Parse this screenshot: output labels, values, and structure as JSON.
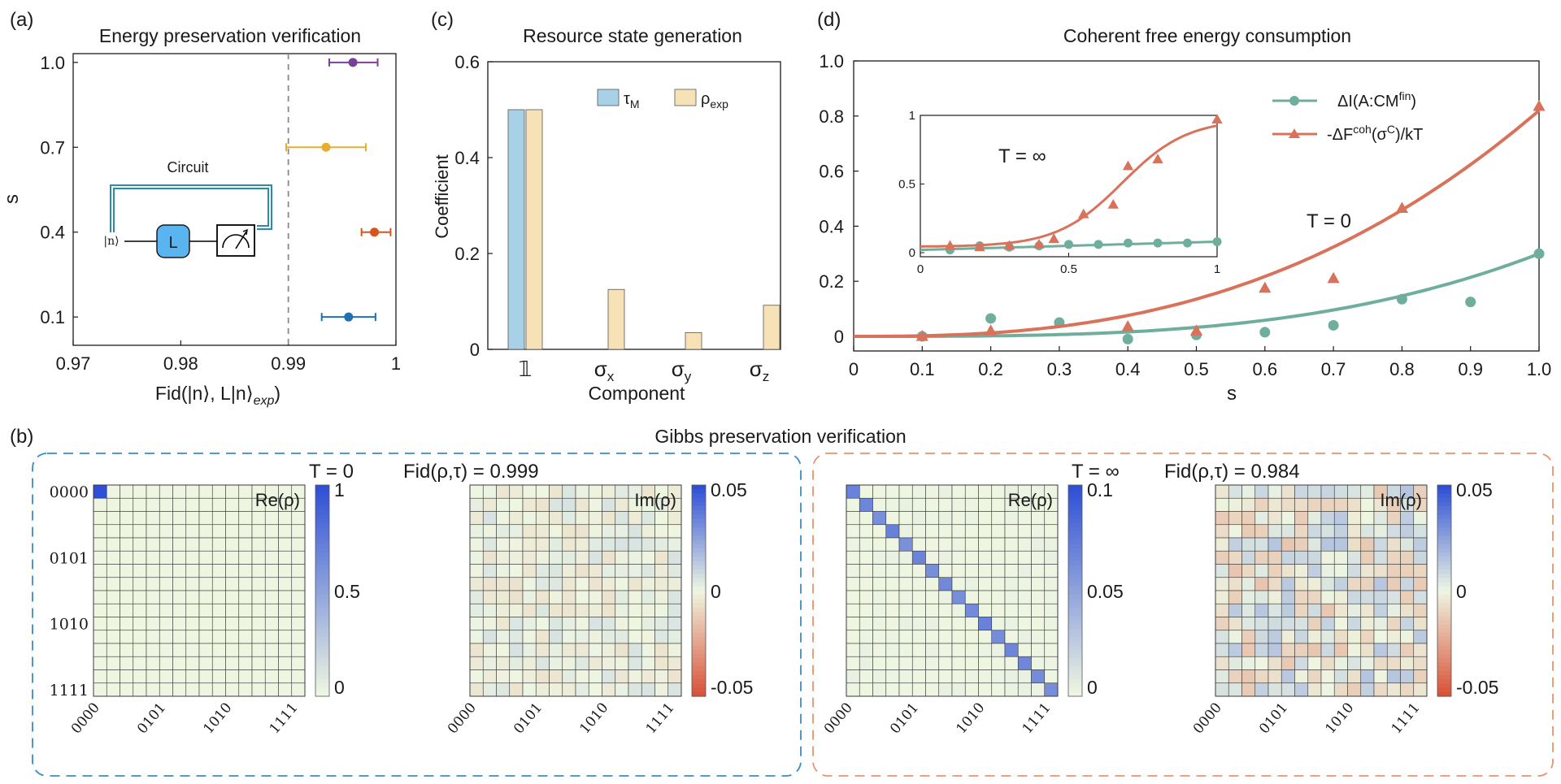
{
  "panel_labels": {
    "a": "(a)",
    "b": "(b)",
    "c": "(c)",
    "d": "(d)"
  },
  "colors": {
    "teal": "#6fae9c",
    "salmon": "#d9725a",
    "blue_bar": "#a8d0e6",
    "tan_bar": "#f7e2b8",
    "purple": "#7b3f98",
    "yellow": "#e8ad2d",
    "orange": "#d9531e",
    "dark_blue": "#1f6fb4",
    "dashed_blue": "#3b8cc0",
    "dashed_orange": "#e8936d",
    "hm_pos": "#2f4fd6",
    "hm_zero": "#eef6e2",
    "hm_neg": "#d9533a"
  },
  "chart_data": [
    {
      "id": "a",
      "type": "scatter",
      "title": "Energy preservation verification",
      "xlabel": "Fid(|n⟩, L|n⟩",
      "xlabel_sub": "exp",
      "xlabel_close": ")",
      "ylabel": "s",
      "xlim": [
        0.97,
        1.0
      ],
      "xticks": [
        0.97,
        0.98,
        0.99,
        1.0
      ],
      "xtick_labels": [
        "0.97",
        "0.98",
        "0.99",
        "1"
      ],
      "yticks": [
        0.1,
        0.4,
        0.7,
        1.0
      ],
      "ytick_labels": [
        "0.1",
        "0.4",
        "0.7",
        "1.0"
      ],
      "ref_line_x": 0.99,
      "points": [
        {
          "s": 1.0,
          "fid": 0.996,
          "err_low": 0.9938,
          "err_high": 0.9983,
          "color": "#7b3f98"
        },
        {
          "s": 0.7,
          "fid": 0.9935,
          "err_low": 0.9898,
          "err_high": 0.9972,
          "color": "#e8ad2d"
        },
        {
          "s": 0.4,
          "fid": 0.998,
          "err_low": 0.9968,
          "err_high": 0.9995,
          "color": "#d9531e"
        },
        {
          "s": 0.1,
          "fid": 0.9956,
          "err_low": 0.9931,
          "err_high": 0.9981,
          "color": "#1f6fb4"
        }
      ],
      "inset": {
        "label": "Circuit",
        "input": "|n⟩",
        "gate": "L",
        "meter_icon": "measurement-meter-icon"
      }
    },
    {
      "id": "c",
      "type": "bar",
      "title": "Resource state generation",
      "xlabel": "Component",
      "ylabel": "Coefficient",
      "ylim": [
        0,
        0.6
      ],
      "yticks": [
        0,
        0.2,
        0.4,
        0.6
      ],
      "ytick_labels": [
        "0",
        "0.2",
        "0.4",
        "0.6"
      ],
      "categories": [
        "𝟙",
        "σ",
        "σ",
        "σ"
      ],
      "category_subs": [
        "",
        "x",
        "y",
        "z"
      ],
      "series": [
        {
          "name": "τ",
          "name_sub": "M",
          "color": "#a8d0e6",
          "values": [
            0.5,
            0,
            0,
            0
          ]
        },
        {
          "name": "ρ",
          "name_sub": "exp",
          "color": "#f7e2b8",
          "values": [
            0.5,
            0.125,
            0.035,
            0.092
          ]
        }
      ]
    },
    {
      "id": "d",
      "type": "line",
      "title": "Coherent free energy consumption",
      "xlabel": "s",
      "ylabel": "",
      "xlim": [
        0,
        1.0
      ],
      "ylim": [
        -0.05,
        1.0
      ],
      "xticks": [
        0,
        0.1,
        0.2,
        0.3,
        0.4,
        0.5,
        0.6,
        0.7,
        0.8,
        0.9,
        1.0
      ],
      "xtick_labels": [
        "0",
        "0.1",
        "0.2",
        "0.3",
        "0.4",
        "0.5",
        "0.6",
        "0.7",
        "0.8",
        "0.9",
        "1.0"
      ],
      "yticks": [
        0,
        0.2,
        0.4,
        0.6,
        0.8,
        1.0
      ],
      "ytick_labels": [
        "0",
        "0.2",
        "0.4",
        "0.6",
        "0.8",
        "1.0"
      ],
      "annotation": "T = 0",
      "series": [
        {
          "name": "ΔI(A:CM",
          "name_sup": "fin",
          "name_tail": ")",
          "color": "#6fae9c",
          "marker": "circle",
          "points": [
            [
              0.1,
              0.0
            ],
            [
              0.2,
              0.065
            ],
            [
              0.3,
              0.05
            ],
            [
              0.4,
              -0.01
            ],
            [
              0.5,
              0.005
            ],
            [
              0.6,
              0.015
            ],
            [
              0.7,
              0.04
            ],
            [
              0.8,
              0.135
            ],
            [
              0.9,
              0.125
            ],
            [
              1.0,
              0.3
            ]
          ],
          "fit": {
            "form": "a*s^p",
            "a": 0.3,
            "p": 3.2
          }
        },
        {
          "name": "-ΔF",
          "name_sup": "coh",
          "name_mid": "(σ",
          "name_sup2": "C",
          "name_tail": ")/kT",
          "color": "#d9725a",
          "marker": "triangle",
          "points": [
            [
              0.1,
              0.0
            ],
            [
              0.2,
              0.02
            ],
            [
              0.4,
              0.035
            ],
            [
              0.5,
              0.02
            ],
            [
              0.6,
              0.175
            ],
            [
              0.7,
              0.21
            ],
            [
              0.8,
              0.465
            ],
            [
              1.0,
              0.835
            ]
          ],
          "fit": {
            "form": "a*s^p",
            "a": 0.82,
            "p": 2.6
          }
        }
      ],
      "inset": {
        "annotation": "T = ∞",
        "xlim": [
          0,
          1
        ],
        "ylim": [
          0,
          1
        ],
        "xticks": [
          0,
          0.5,
          1
        ],
        "xtick_labels": [
          "0",
          "0.5",
          "1"
        ],
        "yticks": [
          0,
          0.5,
          1
        ],
        "ytick_labels": [
          "0",
          "0.5",
          "1"
        ],
        "series": [
          {
            "color": "#6fae9c",
            "marker": "circle",
            "points": [
              [
                0.1,
                0.02
              ],
              [
                0.2,
                0.05
              ],
              [
                0.3,
                0.04
              ],
              [
                0.4,
                0.05
              ],
              [
                0.5,
                0.06
              ],
              [
                0.6,
                0.06
              ],
              [
                0.7,
                0.07
              ],
              [
                0.8,
                0.07
              ],
              [
                0.9,
                0.07
              ],
              [
                1.0,
                0.08
              ]
            ],
            "fit": {
              "form": "linear",
              "a": 0.02,
              "b": 0.06
            }
          },
          {
            "color": "#d9725a",
            "marker": "triangle",
            "points": [
              [
                0.1,
                0.05
              ],
              [
                0.2,
                0.04
              ],
              [
                0.3,
                0.05
              ],
              [
                0.4,
                0.06
              ],
              [
                0.45,
                0.1
              ],
              [
                0.55,
                0.28
              ],
              [
                0.65,
                0.35
              ],
              [
                0.7,
                0.63
              ],
              [
                0.8,
                0.68
              ],
              [
                1.0,
                0.97
              ]
            ],
            "fit": {
              "form": "sigmoid"
            }
          }
        ]
      }
    },
    {
      "id": "b",
      "type": "heatmap",
      "title": "Gibbs preservation verification",
      "groups": [
        {
          "condition": "T = 0",
          "fidelity": "Fid(ρ,τ) = 0.999"
        },
        {
          "condition": "T = ∞",
          "fidelity": "Fid(ρ,τ) = 0.984"
        }
      ],
      "size": 16,
      "axis_labels": [
        "0000",
        "0101",
        "1010",
        "1111"
      ],
      "maps": [
        {
          "label": "Re(ρ)",
          "case": "single_00",
          "scale": [
            0,
            1
          ],
          "cbar_ticks": [
            0,
            0.5,
            1
          ],
          "cbar_labels": [
            "0",
            "0.5",
            "1"
          ]
        },
        {
          "label": "Im(ρ)",
          "case": "noise_small",
          "scale": [
            -0.05,
            0.05
          ],
          "cbar_ticks": [
            -0.05,
            0,
            0.05
          ],
          "cbar_labels": [
            "-0.05",
            "0",
            "0.05"
          ]
        },
        {
          "label": "Re(ρ)",
          "case": "diagonal",
          "scale": [
            0,
            0.1
          ],
          "cbar_ticks": [
            0,
            0.05,
            0.1
          ],
          "cbar_labels": [
            "0",
            "0.05",
            "0.1"
          ]
        },
        {
          "label": "Im(ρ)",
          "case": "noise_medium",
          "scale": [
            -0.05,
            0.05
          ],
          "cbar_ticks": [
            -0.05,
            0,
            0.05
          ],
          "cbar_labels": [
            "-0.05",
            "0",
            "0.05"
          ]
        }
      ]
    }
  ]
}
